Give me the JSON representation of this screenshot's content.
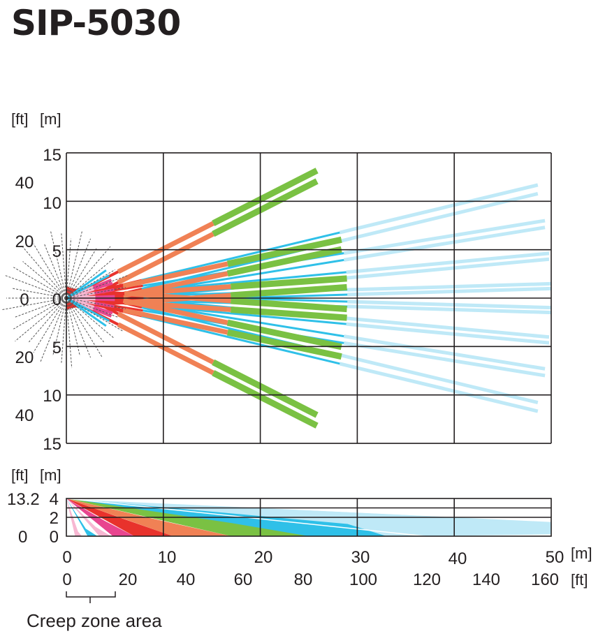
{
  "title": "SIP-5030",
  "colors": {
    "pink": "#f7b7d2",
    "magenta": "#e8458f",
    "red": "#e8322c",
    "orange": "#f08155",
    "green": "#7ac143",
    "blue": "#2fc0e8",
    "light_blue": "#bfe9f7",
    "grid": "#231f20",
    "creep": "#555555"
  },
  "top_view": {
    "unit_ft": "[ft]",
    "unit_m": "[m]",
    "m_ticks": [
      "15",
      "10",
      "5",
      "0",
      "5",
      "10",
      "15"
    ],
    "ft_ticks": [
      "40",
      "20",
      "0",
      "20",
      "40"
    ]
  },
  "side_view": {
    "unit_ft": "[ft]",
    "unit_m": "[m]",
    "m_ticks": [
      "4",
      "2",
      "0"
    ],
    "ft_ticks": [
      "13.2",
      "0"
    ]
  },
  "x_axis": {
    "m_labels": [
      "0",
      "10",
      "20",
      "30",
      "40",
      "50"
    ],
    "m_unit": "[m]",
    "ft_labels": [
      "0",
      "20",
      "40",
      "60",
      "80",
      "100",
      "120",
      "140",
      "160"
    ],
    "ft_unit": "[ft]"
  },
  "creep_zone_label": "Creep zone area"
}
